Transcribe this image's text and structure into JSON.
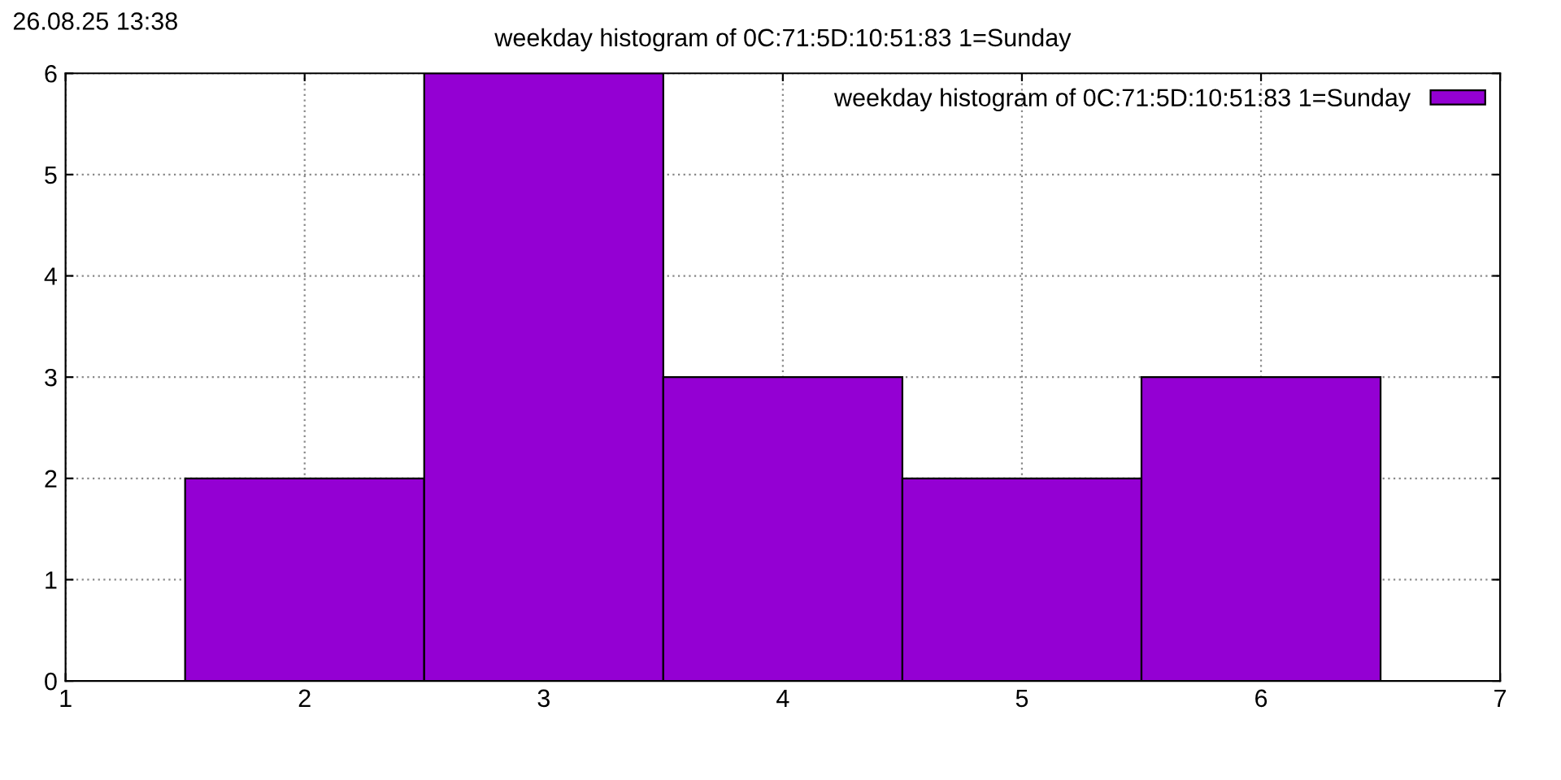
{
  "chart_data": {
    "type": "histogram",
    "title": "weekday histogram of 0C:71:5D:10:51:83 1=Sunday",
    "annotations": [
      "26.08.25 13:38"
    ],
    "bins": [
      1.5,
      2.5,
      3.5,
      4.5,
      5.5,
      6.5
    ],
    "series": [
      {
        "name": "weekday histogram of 0C:71:5D:10:51:83 1=Sunday",
        "color": "#9400d3",
        "values": [
          2,
          6,
          3,
          2,
          3
        ]
      }
    ],
    "xlim": [
      1,
      7
    ],
    "xticks": [
      1,
      2,
      3,
      4,
      5,
      6,
      7
    ],
    "ylim": [
      0,
      6
    ],
    "yticks": [
      0,
      1,
      2,
      3,
      4,
      5,
      6
    ],
    "grid": true,
    "legend": "top right"
  }
}
